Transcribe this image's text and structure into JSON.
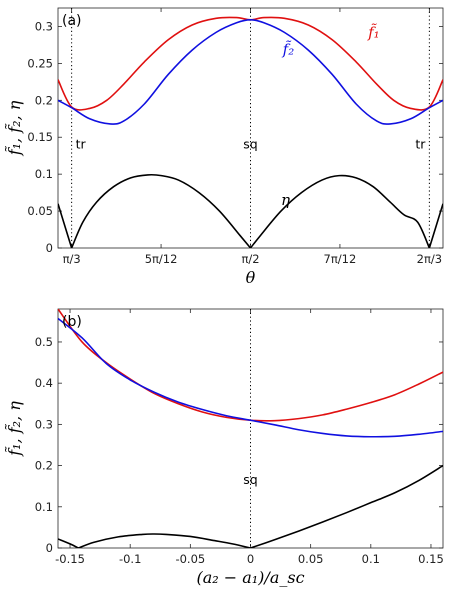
{
  "chart_data": [
    {
      "type": "line",
      "panel_label": "(a)",
      "xlabel": "θ",
      "ylabel": "f̃₁, f̃₂, η",
      "xlim": [
        1.0073,
        2.1343
      ],
      "ylim": [
        0,
        0.325
      ],
      "x_ticks": [
        {
          "value": 1.0472,
          "label": "π/3"
        },
        {
          "value": 1.309,
          "label": "5π/12"
        },
        {
          "value": 1.5708,
          "label": "π/2"
        },
        {
          "value": 1.8326,
          "label": "7π/12"
        },
        {
          "value": 2.0944,
          "label": "2π/3"
        }
      ],
      "y_ticks": [
        {
          "value": 0,
          "label": "0"
        },
        {
          "value": 0.05,
          "label": "0.05"
        },
        {
          "value": 0.1,
          "label": "0.1"
        },
        {
          "value": 0.15,
          "label": "0.15"
        },
        {
          "value": 0.2,
          "label": "0.2"
        },
        {
          "value": 0.25,
          "label": "0.25"
        },
        {
          "value": 0.3,
          "label": "0.3"
        }
      ],
      "vlines": [
        {
          "x": 1.0472,
          "label": "tr",
          "label_y": 0.14,
          "label_side": "right"
        },
        {
          "x": 1.5708,
          "label": "sq",
          "label_y": 0.14,
          "label_side": "center"
        },
        {
          "x": 2.0944,
          "label": "tr",
          "label_y": 0.14,
          "label_side": "left"
        }
      ],
      "series": [
        {
          "name": "f̃₁",
          "color": "#e01010",
          "label_x": 1.915,
          "label_y": 0.285,
          "x": [
            1.0073,
            1.0472,
            1.1,
            1.15,
            1.2,
            1.26,
            1.33,
            1.4,
            1.47,
            1.53,
            1.5708,
            1.61,
            1.67,
            1.74,
            1.81,
            1.88,
            1.94,
            1.99,
            2.04,
            2.0944,
            2.1343
          ],
          "y": [
            0.228,
            0.191,
            0.189,
            0.2,
            0.222,
            0.252,
            0.282,
            0.302,
            0.311,
            0.312,
            0.309,
            0.312,
            0.311,
            0.302,
            0.282,
            0.252,
            0.222,
            0.2,
            0.189,
            0.191,
            0.228
          ]
        },
        {
          "name": "f̃₂",
          "color": "#1010e0",
          "label_x": 1.665,
          "label_y": 0.262,
          "x": [
            1.0073,
            1.0472,
            1.1,
            1.16,
            1.2,
            1.26,
            1.33,
            1.4,
            1.47,
            1.53,
            1.5708,
            1.61,
            1.67,
            1.74,
            1.81,
            1.88,
            1.94,
            1.98,
            2.04,
            2.0944,
            2.1343
          ],
          "y": [
            0.2,
            0.19,
            0.175,
            0.168,
            0.172,
            0.195,
            0.235,
            0.268,
            0.292,
            0.305,
            0.309,
            0.305,
            0.292,
            0.268,
            0.235,
            0.195,
            0.172,
            0.168,
            0.175,
            0.19,
            0.2
          ]
        },
        {
          "name": "η",
          "color": "#000000",
          "label_x": 1.66,
          "label_y": 0.058,
          "x": [
            1.0073,
            1.0472,
            1.08,
            1.12,
            1.17,
            1.22,
            1.27,
            1.31,
            1.36,
            1.42,
            1.48,
            1.54,
            1.5708,
            1.6,
            1.66,
            1.72,
            1.78,
            1.83,
            1.88,
            1.93,
            1.98,
            2.02,
            2.06,
            2.0944,
            2.1343
          ],
          "y": [
            0.06,
            0.0,
            0.035,
            0.062,
            0.083,
            0.095,
            0.099,
            0.098,
            0.092,
            0.075,
            0.05,
            0.017,
            0.0,
            0.017,
            0.05,
            0.075,
            0.092,
            0.098,
            0.095,
            0.083,
            0.062,
            0.045,
            0.035,
            0.0,
            0.06
          ]
        }
      ]
    },
    {
      "type": "line",
      "panel_label": "(b)",
      "xlabel": "(a₂ − a₁)/a_sc",
      "ylabel": "f̃₁, f̃₂, η",
      "xlim": [
        -0.16,
        0.16
      ],
      "ylim": [
        0,
        0.58
      ],
      "x_ticks": [
        {
          "value": -0.15,
          "label": "-0.15"
        },
        {
          "value": -0.1,
          "label": "-0.1"
        },
        {
          "value": -0.05,
          "label": "-0.05"
        },
        {
          "value": 0,
          "label": "0"
        },
        {
          "value": 0.05,
          "label": "0.05"
        },
        {
          "value": 0.1,
          "label": "0.1"
        },
        {
          "value": 0.15,
          "label": "0.15"
        }
      ],
      "y_ticks": [
        {
          "value": 0,
          "label": "0"
        },
        {
          "value": 0.1,
          "label": "0.1"
        },
        {
          "value": 0.2,
          "label": "0.2"
        },
        {
          "value": 0.3,
          "label": "0.3"
        },
        {
          "value": 0.4,
          "label": "0.4"
        },
        {
          "value": 0.5,
          "label": "0.5"
        }
      ],
      "vlines": [
        {
          "x": 0,
          "label": "sq",
          "label_y": 0.165,
          "label_side": "center"
        }
      ],
      "series": [
        {
          "name": "",
          "color": "#e01010",
          "x": [
            -0.16,
            -0.14,
            -0.12,
            -0.1,
            -0.08,
            -0.06,
            -0.04,
            -0.02,
            0.0,
            0.02,
            0.04,
            0.06,
            0.08,
            0.1,
            0.12,
            0.14,
            0.16
          ],
          "y": [
            0.58,
            0.5,
            0.45,
            0.41,
            0.375,
            0.35,
            0.33,
            0.317,
            0.31,
            0.309,
            0.314,
            0.323,
            0.337,
            0.353,
            0.372,
            0.398,
            0.427
          ]
        },
        {
          "name": "",
          "color": "#1010e0",
          "x": [
            -0.16,
            -0.14,
            -0.12,
            -0.1,
            -0.08,
            -0.06,
            -0.04,
            -0.02,
            0.0,
            0.02,
            0.04,
            0.06,
            0.08,
            0.1,
            0.12,
            0.14,
            0.16
          ],
          "y": [
            0.557,
            0.51,
            0.448,
            0.408,
            0.378,
            0.354,
            0.336,
            0.321,
            0.31,
            0.299,
            0.287,
            0.278,
            0.272,
            0.27,
            0.271,
            0.276,
            0.283
          ]
        },
        {
          "name": "",
          "color": "#000000",
          "x": [
            -0.16,
            -0.15,
            -0.143,
            -0.13,
            -0.11,
            -0.09,
            -0.08,
            -0.07,
            -0.05,
            -0.03,
            -0.015,
            0.0,
            0.02,
            0.04,
            0.06,
            0.08,
            0.1,
            0.12,
            0.14,
            0.16
          ],
          "y": [
            0.022,
            0.01,
            0.0,
            0.014,
            0.027,
            0.033,
            0.034,
            0.033,
            0.028,
            0.018,
            0.01,
            0.0,
            0.02,
            0.041,
            0.063,
            0.086,
            0.11,
            0.134,
            0.164,
            0.2
          ]
        }
      ]
    }
  ]
}
